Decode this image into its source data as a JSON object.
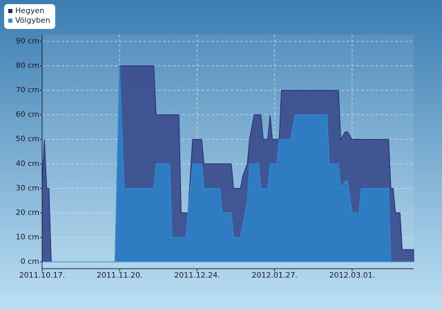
{
  "chart_data": {
    "type": "area",
    "x": [
      "2011-10-17",
      "2011-10-18",
      "2011-10-19",
      "2011-10-20",
      "2011-10-21",
      "2011-11-18",
      "2011-11-20",
      "2011-11-22",
      "2011-12-05",
      "2011-12-06",
      "2011-12-12",
      "2011-12-13",
      "2011-12-16",
      "2011-12-17",
      "2011-12-19",
      "2011-12-20",
      "2011-12-22",
      "2011-12-26",
      "2011-12-27",
      "2012-01-03",
      "2012-01-04",
      "2012-01-08",
      "2012-01-09",
      "2012-01-12",
      "2012-01-13",
      "2012-01-15",
      "2012-01-16",
      "2012-01-18",
      "2012-01-20",
      "2012-01-21",
      "2012-01-22",
      "2012-01-24",
      "2012-01-25",
      "2012-01-26",
      "2012-01-28",
      "2012-01-29",
      "2012-01-30",
      "2012-02-03",
      "2012-02-05",
      "2012-02-19",
      "2012-02-20",
      "2012-02-24",
      "2012-02-25",
      "2012-02-27",
      "2012-02-28",
      "2012-03-01",
      "2012-03-04",
      "2012-03-05",
      "2012-03-17",
      "2012-03-18",
      "2012-03-19",
      "2012-03-20",
      "2012-03-22",
      "2012-03-23",
      "2012-03-28"
    ],
    "series": [
      {
        "name": "Hegyen",
        "color": "#1e2a6e",
        "fill": "#3d4f8f",
        "values": [
          33,
          50,
          30,
          30,
          0,
          0,
          80,
          80,
          80,
          60,
          60,
          60,
          60,
          20,
          20,
          20,
          50,
          50,
          40,
          40,
          40,
          40,
          30,
          30,
          35,
          40,
          50,
          60,
          60,
          60,
          50,
          50,
          60,
          50,
          50,
          50,
          70,
          70,
          70,
          70,
          70,
          70,
          50,
          53,
          53,
          50,
          50,
          50,
          50,
          30,
          30,
          20,
          20,
          5,
          5
        ]
      },
      {
        "name": "Völgyben",
        "color": "#2a8fd4",
        "fill": "#2f7ec4",
        "values": [
          0,
          0,
          0,
          0,
          0,
          0,
          80,
          30,
          30,
          40,
          40,
          10,
          10,
          10,
          10,
          20,
          40,
          40,
          30,
          30,
          20,
          20,
          10,
          10,
          15,
          25,
          40,
          40,
          40,
          30,
          30,
          30,
          40,
          40,
          40,
          50,
          50,
          50,
          60,
          60,
          40,
          40,
          30,
          33,
          33,
          20,
          20,
          30,
          30,
          0,
          0,
          0,
          0,
          0,
          0
        ]
      }
    ],
    "xlim": [
      "2011-10-17",
      "2012-03-28"
    ],
    "xticks": [
      {
        "value": "2011-10-17",
        "label": "2011.10.17."
      },
      {
        "value": "2011-11-20",
        "label": "2011.11.20."
      },
      {
        "value": "2011-12-24",
        "label": "2011.12.24."
      },
      {
        "value": "2012-01-27",
        "label": "2012.01.27."
      },
      {
        "value": "2012-03-01",
        "label": "2012.03.01."
      }
    ],
    "ylim": [
      -2.8,
      92.8
    ],
    "yticks": [
      {
        "value": 0,
        "label": "0 cm"
      },
      {
        "value": 10,
        "label": "10 cm"
      },
      {
        "value": 20,
        "label": "20 cm"
      },
      {
        "value": 30,
        "label": "30 cm"
      },
      {
        "value": 40,
        "label": "40 cm"
      },
      {
        "value": 50,
        "label": "50 cm"
      },
      {
        "value": 60,
        "label": "60 cm"
      },
      {
        "value": 70,
        "label": "70 cm"
      },
      {
        "value": 80,
        "label": "80 cm"
      },
      {
        "value": 90,
        "label": "90 cm"
      }
    ],
    "grid": true,
    "legend": "top-left"
  }
}
